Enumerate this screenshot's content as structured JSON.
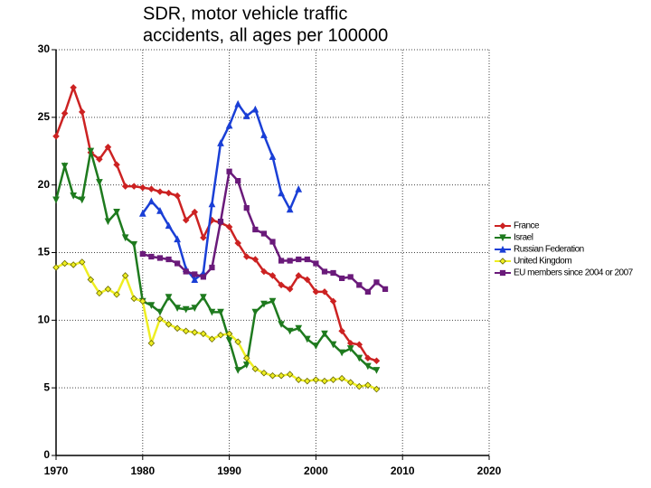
{
  "chart_data": {
    "type": "line",
    "title": [
      "SDR, motor vehicle traffic",
      "accidents, all ages per 100000"
    ],
    "xlim": [
      1970,
      2020
    ],
    "xticks": [
      1970,
      1980,
      1990,
      2000,
      2010,
      2020
    ],
    "ylim": [
      0,
      30
    ],
    "yticks": [
      0,
      5,
      10,
      15,
      20,
      25,
      30
    ],
    "grid": true,
    "legend": "right",
    "series": [
      {
        "name": "France",
        "color": "#cc2222",
        "marker": "diamond",
        "x": [
          1970,
          1971,
          1972,
          1973,
          1974,
          1975,
          1976,
          1977,
          1978,
          1979,
          1980,
          1981,
          1982,
          1983,
          1984,
          1985,
          1986,
          1987,
          1988,
          1989,
          1990,
          1991,
          1992,
          1993,
          1994,
          1995,
          1996,
          1997,
          1998,
          1999,
          2000,
          2001,
          2002,
          2003,
          2004,
          2005,
          2006,
          2007
        ],
        "values": [
          23.6,
          25.3,
          27.2,
          25.4,
          22.4,
          21.9,
          22.8,
          21.5,
          19.9,
          19.9,
          19.8,
          19.7,
          19.5,
          19.4,
          19.2,
          17.4,
          18.0,
          16.1,
          17.4,
          17.2,
          16.9,
          15.7,
          14.7,
          14.5,
          13.6,
          13.3,
          12.6,
          12.3,
          13.3,
          13.0,
          12.1,
          12.1,
          11.4,
          9.2,
          8.3,
          8.2,
          7.2,
          7.0
        ]
      },
      {
        "name": "Israel",
        "color": "#1e7a1e",
        "marker": "triangle-down",
        "x": [
          1970,
          1971,
          1972,
          1973,
          1974,
          1975,
          1976,
          1977,
          1978,
          1979,
          1980,
          1981,
          1982,
          1983,
          1984,
          1985,
          1986,
          1987,
          1988,
          1989,
          1990,
          1991,
          1992,
          1993,
          1994,
          1995,
          1996,
          1997,
          1998,
          1999,
          2000,
          2001,
          2002,
          2003,
          2004,
          2005,
          2006,
          2007
        ],
        "values": [
          18.9,
          21.4,
          19.2,
          18.9,
          22.5,
          20.2,
          17.3,
          18.0,
          16.1,
          15.6,
          11.4,
          11.1,
          10.6,
          11.7,
          10.9,
          10.8,
          10.9,
          11.7,
          10.6,
          10.6,
          8.5,
          6.3,
          6.7,
          10.6,
          11.2,
          11.4,
          9.7,
          9.2,
          9.4,
          8.6,
          8.1,
          9.0,
          8.2,
          7.6,
          7.9,
          7.2,
          6.6,
          6.3
        ]
      },
      {
        "name": "Russian Federation",
        "color": "#1a3fd6",
        "marker": "triangle-up",
        "x": [
          1980,
          1981,
          1982,
          1983,
          1984,
          1985,
          1986,
          1987,
          1988,
          1989,
          1990,
          1991,
          1992,
          1993,
          1994,
          1995,
          1996,
          1997,
          1998
        ],
        "values": [
          17.9,
          18.8,
          18.1,
          17.0,
          16.0,
          13.8,
          13.0,
          13.5,
          18.6,
          23.1,
          24.4,
          26.0,
          25.1,
          25.6,
          23.7,
          22.1,
          19.4,
          18.2,
          19.7
        ]
      },
      {
        "name": "United Kingdom",
        "color": "#eeee22",
        "marker": "diamond-open",
        "x": [
          1970,
          1971,
          1972,
          1973,
          1974,
          1975,
          1976,
          1977,
          1978,
          1979,
          1980,
          1981,
          1982,
          1983,
          1984,
          1985,
          1986,
          1987,
          1988,
          1989,
          1990,
          1991,
          1992,
          1993,
          1994,
          1995,
          1996,
          1997,
          1998,
          1999,
          2000,
          2001,
          2002,
          2003,
          2004,
          2005,
          2006,
          2007
        ],
        "values": [
          13.9,
          14.2,
          14.1,
          14.3,
          13.0,
          12.0,
          12.3,
          11.9,
          13.3,
          11.6,
          11.4,
          8.3,
          10.1,
          9.7,
          9.4,
          9.2,
          9.1,
          9.0,
          8.6,
          8.9,
          9.0,
          8.4,
          7.2,
          6.4,
          6.1,
          5.9,
          5.9,
          6.0,
          5.6,
          5.5,
          5.6,
          5.5,
          5.6,
          5.7,
          5.4,
          5.1,
          5.2,
          4.9
        ]
      },
      {
        "name": "EU members since 2004 or 2007",
        "color": "#6a1a7a",
        "marker": "square",
        "x": [
          1980,
          1981,
          1982,
          1983,
          1984,
          1985,
          1986,
          1987,
          1988,
          1989,
          1990,
          1991,
          1992,
          1993,
          1994,
          1995,
          1996,
          1997,
          1998,
          1999,
          2000,
          2001,
          2002,
          2003,
          2004,
          2005,
          2006,
          2007,
          2008
        ],
        "values": [
          14.9,
          14.7,
          14.6,
          14.5,
          14.2,
          13.6,
          13.4,
          13.2,
          13.9,
          17.3,
          21.0,
          20.3,
          18.3,
          16.7,
          16.4,
          15.8,
          14.4,
          14.4,
          14.5,
          14.5,
          14.2,
          13.6,
          13.5,
          13.1,
          13.2,
          12.6,
          12.1,
          12.8,
          12.3
        ]
      }
    ]
  }
}
